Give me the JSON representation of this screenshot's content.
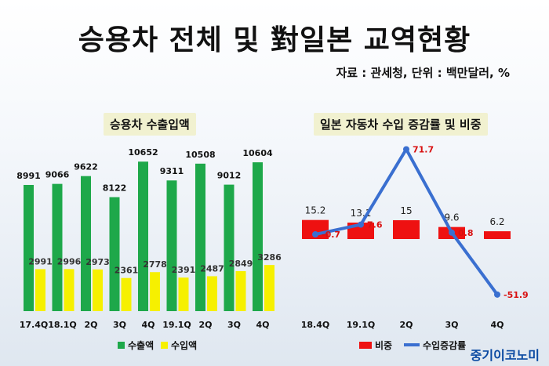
{
  "title": "승용차 전체 및 對일본 교역현황",
  "source": "자료 : 관세청, 단위 : 백만달러, %",
  "credit": "중기이코노미",
  "colors": {
    "export": "#1ea84a",
    "import": "#f6f000",
    "share": "#ee1111",
    "growth": "#3a6fd0"
  },
  "chart_data": [
    {
      "type": "bar",
      "title": "승용차 수출입액",
      "categories": [
        "17.4Q",
        "18.1Q",
        "2Q",
        "3Q",
        "4Q",
        "19.1Q",
        "2Q",
        "3Q",
        "4Q"
      ],
      "series": [
        {
          "name": "수출액",
          "values": [
            8991,
            9066,
            9622,
            8122,
            10652,
            9311,
            10508,
            9012,
            10604
          ]
        },
        {
          "name": "수입액",
          "values": [
            2991,
            2996,
            2973,
            2361,
            2778,
            2391,
            2487,
            2849,
            3286
          ]
        }
      ],
      "ylim": [
        0,
        11000
      ],
      "legend": "bottom"
    },
    {
      "type": "bar",
      "title": "일본 자동차 수입 증감률 및 비중",
      "categories": [
        "18.4Q",
        "19.1Q",
        "2Q",
        "3Q",
        "4Q"
      ],
      "series": [
        {
          "name": "비중",
          "type": "bar",
          "values": [
            15.2,
            13.1,
            15,
            9.6,
            6.2
          ]
        },
        {
          "name": "수입증감률",
          "type": "line",
          "values": [
            -0.7,
            7.6,
            71.7,
            0.8,
            -51.9
          ]
        }
      ],
      "legend": "bottom"
    }
  ]
}
